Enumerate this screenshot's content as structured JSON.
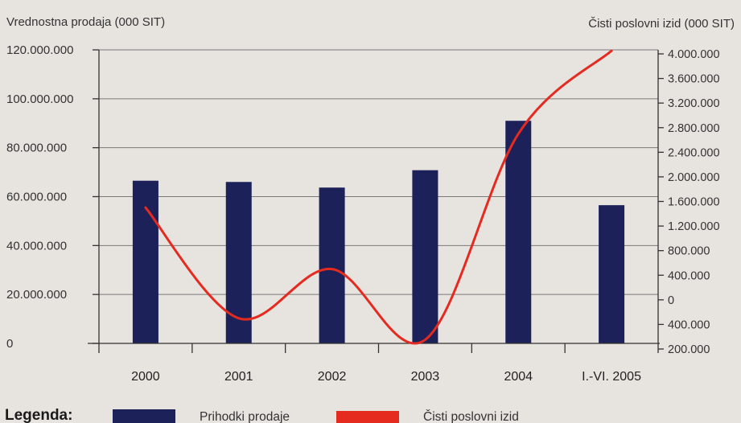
{
  "chart_data": {
    "type": "bar",
    "categories": [
      "2000",
      "2001",
      "2002",
      "2003",
      "2004",
      "I.-VI. 2005"
    ],
    "ylabel_left": "Vrednostna prodaja (000 SIT)",
    "ylabel_right": "Čisti poslovni izid (000 SIT)",
    "left_axis": {
      "ylim": [
        0,
        120000000
      ],
      "ticks": [
        0,
        20000000,
        40000000,
        60000000,
        80000000,
        100000000,
        120000000
      ],
      "tick_labels": [
        "0",
        "20.000.000",
        "40.000.000",
        "60.000.000",
        "80.000.000",
        "100.000.000",
        "120.000.000"
      ]
    },
    "right_axis": {
      "tick_labels": [
        "4.000.000",
        "3.600.000",
        "3.200.000",
        "2.800.000",
        "2.400.000",
        "2.000.000",
        "1.600.000",
        "1.200.000",
        "800.000",
        "400.000",
        "0",
        "400.000",
        "200.000"
      ]
    },
    "grid": true,
    "legend_position": "bottom-left",
    "series": [
      {
        "name": "Prihodki prodaje",
        "type": "bar",
        "axis": "left",
        "color": "#1c2159",
        "values": [
          66500000,
          66000000,
          63700000,
          70800000,
          91000000,
          56500000
        ]
      },
      {
        "name": "Čisti poslovni izid",
        "type": "line",
        "axis": "right",
        "color": "#e52a20",
        "values": [
          1500000,
          -300000,
          500000,
          -650000,
          2700000,
          4050000
        ]
      }
    ],
    "legend_title": "Legenda:"
  }
}
